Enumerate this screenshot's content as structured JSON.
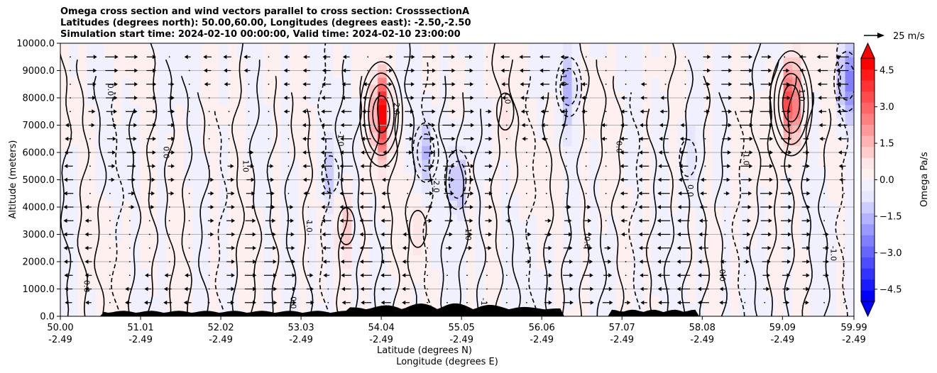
{
  "title_lines": [
    "Omega cross section and wind vectors parallel to cross section: CrosssectionA",
    "Latitudes (degrees north): 50.00,60.00, Longitudes (degrees east): -2.50,-2.50",
    "Simulation start time: 2024-02-10 00:00:00, Valid time: 2024-02-10 23:00:00"
  ],
  "quiver_key": {
    "label": "25 m/s"
  },
  "chart_data": {
    "type": "heatmap",
    "ylabel": "Altitude (meters)",
    "xlabel_lines": [
      "Latitude (degrees N)",
      "Longitude (degrees E)"
    ],
    "ylim": [
      0,
      10000
    ],
    "xlim": [
      50.0,
      59.99
    ],
    "yticks": [
      0,
      1000,
      2000,
      3000,
      4000,
      5000,
      6000,
      7000,
      8000,
      9000,
      10000
    ],
    "ytick_labels": [
      "0.0",
      "1000.0",
      "2000.0",
      "3000.0",
      "4000.0",
      "5000.0",
      "6000.0",
      "7000.0",
      "8000.0",
      "9000.0",
      "10000.0"
    ],
    "xticks": [
      {
        "lat": 50.0,
        "lat_label": "50.00",
        "lon_label": "-2.49"
      },
      {
        "lat": 51.01,
        "lat_label": "51.01",
        "lon_label": "-2.49"
      },
      {
        "lat": 52.02,
        "lat_label": "52.02",
        "lon_label": "-2.49"
      },
      {
        "lat": 53.03,
        "lat_label": "53.03",
        "lon_label": "-2.49"
      },
      {
        "lat": 54.04,
        "lat_label": "54.04",
        "lon_label": "-2.49"
      },
      {
        "lat": 55.05,
        "lat_label": "55.05",
        "lon_label": "-2.49"
      },
      {
        "lat": 56.06,
        "lat_label": "56.06",
        "lon_label": "-2.49"
      },
      {
        "lat": 57.07,
        "lat_label": "57.07",
        "lon_label": "-2.49"
      },
      {
        "lat": 58.08,
        "lat_label": "58.08",
        "lon_label": "-2.49"
      },
      {
        "lat": 59.09,
        "lat_label": "59.09",
        "lon_label": "-2.49"
      },
      {
        "lat": 59.99,
        "lat_label": "59.99",
        "lon_label": "-2.49"
      }
    ],
    "grid": true,
    "colorbar": {
      "label": "Omega Pa/s",
      "range": [
        -5.0,
        5.0
      ],
      "ticks": [
        4.5,
        3.0,
        1.5,
        0.0,
        -1.5,
        -3.0,
        -4.5
      ],
      "tick_labels": [
        "4.5",
        "3.0",
        "1.5",
        "0.0",
        "−1.5",
        "−3.0",
        "−4.5"
      ],
      "extend": "both",
      "colors": [
        "#0000ff",
        "#1a1aff",
        "#3333ff",
        "#4d4dff",
        "#6666ff",
        "#8080ff",
        "#9999ff",
        "#b3b3ff",
        "#ccccff",
        "#e6e6ff",
        "#f0f0ff",
        "#fff0f0",
        "#ffe6e6",
        "#ffcccc",
        "#ffb3b3",
        "#ff9999",
        "#ff8080",
        "#ff6666",
        "#ff4d4d",
        "#ff3333",
        "#ff1a1a",
        "#ff0000"
      ]
    },
    "omega_features": [
      {
        "lat": 54.04,
        "z": 7400,
        "value": 4.8
      },
      {
        "lat": 54.6,
        "z": 6000,
        "value": -1.5
      },
      {
        "lat": 55.0,
        "z": 5000,
        "value": -2.0
      },
      {
        "lat": 53.4,
        "z": 5200,
        "value": -1.2
      },
      {
        "lat": 56.4,
        "z": 8400,
        "value": -1.5
      },
      {
        "lat": 59.2,
        "z": 7800,
        "value": 4.5
      },
      {
        "lat": 59.9,
        "z": 8600,
        "value": -2.5
      },
      {
        "lat": 53.6,
        "z": 3300,
        "value": 1.2
      },
      {
        "lat": 54.5,
        "z": 3200,
        "value": 1.0
      },
      {
        "lat": 55.6,
        "z": 7500,
        "value": 1.0
      },
      {
        "lat": 57.9,
        "z": 5800,
        "value": -1.0
      }
    ],
    "contour_labels": [
      "0.0",
      "1.0",
      "-1.0",
      "2.0",
      "-2.0",
      "3.0"
    ],
    "terrain_max_m": 500
  }
}
